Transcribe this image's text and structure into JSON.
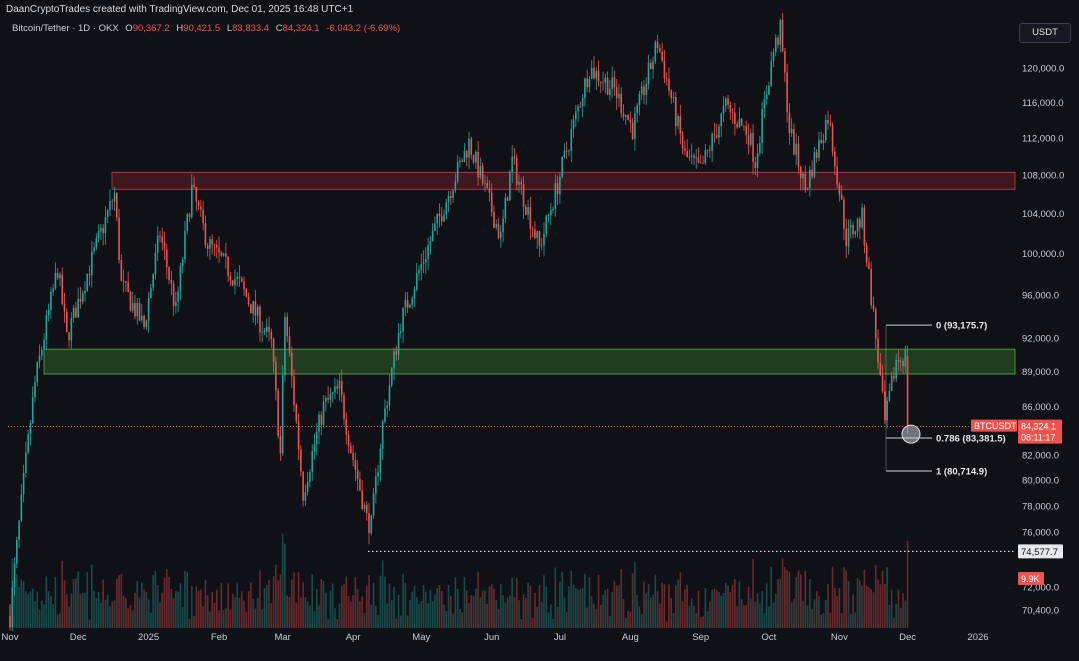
{
  "header": {
    "credit": "DaanCryptoTrades created with TradingView.com, Dec 01, 2025 16:48 UTC+1",
    "symbol_line": "Bitcoin/Tether · 1D · OKX",
    "open_label": "O",
    "open": "90,367.2",
    "high_label": "H",
    "high": "90,421.5",
    "low_label": "L",
    "low": "83,833.4",
    "close_label": "C",
    "close": "84,324.1",
    "change": "-6,043.2 (-6.69%)",
    "currency_button": "USDT"
  },
  "colors": {
    "up": "#26a69a",
    "down": "#ef5350",
    "resistance_zone": "#7a1f27",
    "support_zone": "#2f5a2a",
    "background": "#0f1117"
  },
  "chart_data": {
    "type": "candlestick",
    "symbol": "BTCUSDT",
    "exchange": "OKX",
    "timeframe": "1D",
    "x_ticks": [
      "Nov",
      "Dec",
      "2025",
      "Feb",
      "Mar",
      "Apr",
      "May",
      "Jun",
      "Jul",
      "Aug",
      "Sep",
      "Oct",
      "Nov",
      "Dec",
      "2026"
    ],
    "y_ticks": [
      "120,000.0",
      "116,000.0",
      "112,000.0",
      "108,000.0",
      "104,000.0",
      "100,000.0",
      "96,000.0",
      "92,000.0",
      "89,000.0",
      "86,000.0",
      "82,000.0",
      "80,000.0",
      "78,000.0",
      "76,000.0",
      "72,000.0",
      "70,400.0"
    ],
    "scale": "log",
    "y_range": [
      69600,
      126000
    ],
    "price_path": [
      {
        "date": "2024-11-01",
        "close": 70000
      },
      {
        "date": "2024-11-12",
        "close": 88000
      },
      {
        "date": "2024-11-22",
        "close": 98500
      },
      {
        "date": "2024-11-26",
        "close": 92000
      },
      {
        "date": "2024-12-05",
        "close": 98000
      },
      {
        "date": "2024-12-17",
        "close": 106000
      },
      {
        "date": "2024-12-20",
        "close": 97000
      },
      {
        "date": "2024-12-30",
        "close": 93000
      },
      {
        "date": "2025-01-06",
        "close": 102000
      },
      {
        "date": "2025-01-13",
        "close": 94500
      },
      {
        "date": "2025-01-20",
        "close": 106500
      },
      {
        "date": "2025-01-27",
        "close": 101000
      },
      {
        "date": "2025-02-10",
        "close": 97000
      },
      {
        "date": "2025-02-24",
        "close": 91500
      },
      {
        "date": "2025-02-28",
        "close": 82000
      },
      {
        "date": "2025-03-02",
        "close": 94000
      },
      {
        "date": "2025-03-10",
        "close": 79000
      },
      {
        "date": "2025-03-19",
        "close": 86000
      },
      {
        "date": "2025-03-26",
        "close": 87500
      },
      {
        "date": "2025-03-31",
        "close": 82500
      },
      {
        "date": "2025-04-07",
        "close": 77000
      },
      {
        "date": "2025-04-09",
        "close": 76500
      },
      {
        "date": "2025-04-14",
        "close": 84500
      },
      {
        "date": "2025-04-22",
        "close": 93500
      },
      {
        "date": "2025-05-08",
        "close": 103000
      },
      {
        "date": "2025-05-22",
        "close": 111500
      },
      {
        "date": "2025-06-05",
        "close": 101500
      },
      {
        "date": "2025-06-10",
        "close": 109500
      },
      {
        "date": "2025-06-22",
        "close": 100500
      },
      {
        "date": "2025-06-30",
        "close": 107000
      },
      {
        "date": "2025-07-14",
        "close": 120000
      },
      {
        "date": "2025-07-25",
        "close": 117500
      },
      {
        "date": "2025-08-02",
        "close": 113000
      },
      {
        "date": "2025-08-13",
        "close": 123000
      },
      {
        "date": "2025-08-25",
        "close": 110000
      },
      {
        "date": "2025-09-01",
        "close": 108500
      },
      {
        "date": "2025-09-12",
        "close": 115500
      },
      {
        "date": "2025-09-22",
        "close": 112500
      },
      {
        "date": "2025-09-25",
        "close": 109500
      },
      {
        "date": "2025-10-03",
        "close": 122000
      },
      {
        "date": "2025-10-06",
        "close": 124500
      },
      {
        "date": "2025-10-10",
        "close": 113000
      },
      {
        "date": "2025-10-17",
        "close": 106500
      },
      {
        "date": "2025-10-27",
        "close": 114500
      },
      {
        "date": "2025-11-04",
        "close": 101500
      },
      {
        "date": "2025-11-11",
        "close": 103500
      },
      {
        "date": "2025-11-21",
        "close": 84500
      },
      {
        "date": "2025-11-26",
        "close": 90000
      },
      {
        "date": "2025-11-30",
        "close": 90367
      },
      {
        "date": "2025-12-01",
        "close": 84324
      }
    ],
    "zones": [
      {
        "name": "resistance",
        "from": 106500,
        "to": 108300,
        "color": "red"
      },
      {
        "name": "support",
        "from": 88800,
        "to": 91000,
        "color": "green"
      }
    ],
    "fibonacci": [
      {
        "level": "0",
        "price": 93175.7,
        "label": "0 (93,175.7)"
      },
      {
        "level": "0.786",
        "price": 83381.5,
        "label": "0.786 (83,381.5)"
      },
      {
        "level": "1",
        "price": 80714.9,
        "label": "1 (80,714.9)"
      }
    ],
    "horizontal_lines": [
      {
        "price": 74577.7,
        "label": "74,577.7",
        "style": "dotted"
      }
    ],
    "last_price": {
      "symbol": "BTCUSDT",
      "price": "84,324.1",
      "countdown": "08:11:17"
    },
    "volume_label": "9.9K",
    "legend_position": "top-left"
  }
}
